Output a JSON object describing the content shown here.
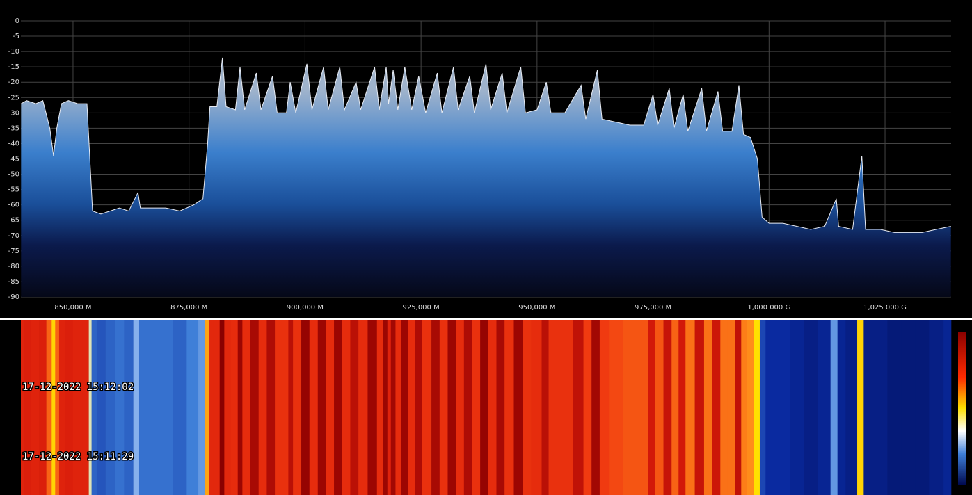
{
  "chart_data": {
    "type": "area",
    "x": [
      838.8,
      840,
      842,
      843.5,
      845,
      845.8,
      846.5,
      847.5,
      849,
      851,
      853,
      853.8,
      854.2,
      856,
      858,
      860,
      862,
      864,
      864.5,
      867,
      870,
      873,
      876,
      878,
      879,
      879.5,
      881,
      882.2,
      883,
      885,
      886,
      887,
      889.5,
      890.5,
      893,
      894,
      896,
      896.8,
      898,
      900.4,
      901.5,
      904,
      905,
      907.5,
      908.5,
      911,
      912,
      915,
      916,
      917.5,
      918,
      919,
      920,
      921.5,
      923,
      924.5,
      926,
      928.5,
      929.5,
      932,
      933,
      935.5,
      936.5,
      939,
      940,
      942.5,
      943.5,
      946.5,
      947.5,
      950,
      952,
      953,
      956,
      959.5,
      960.5,
      963,
      964,
      967,
      970,
      973,
      975,
      976,
      978.5,
      979.5,
      981.5,
      982.5,
      985.5,
      986.5,
      989,
      990,
      992,
      993.5,
      994.5,
      996,
      997.5,
      998.5,
      1000,
      1003,
      1006,
      1009,
      1012,
      1014.5,
      1015,
      1018,
      1020,
      1020.8,
      1024,
      1027,
      1030,
      1033,
      1036,
      1039.2
    ],
    "values": [
      -27,
      -26,
      -27,
      -26,
      -35,
      -44,
      -35,
      -27,
      -26,
      -27,
      -27,
      -50,
      -62,
      -63,
      -62,
      -61,
      -62,
      -56,
      -61,
      -61,
      -61,
      -62,
      -60,
      -58,
      -40,
      -28,
      -28,
      -12,
      -28,
      -29,
      -15,
      -29,
      -17,
      -29,
      -18,
      -30,
      -30,
      -20,
      -30,
      -14,
      -29,
      -15,
      -29,
      -15,
      -29,
      -20,
      -29,
      -15,
      -29,
      -15,
      -27,
      -16,
      -29,
      -15,
      -29,
      -18,
      -30,
      -17,
      -30,
      -15,
      -29,
      -18,
      -30,
      -14,
      -29,
      -17,
      -30,
      -15,
      -30,
      -29,
      -20,
      -30,
      -30,
      -21,
      -32,
      -16,
      -32,
      -33,
      -34,
      -34,
      -24,
      -34,
      -22,
      -35,
      -24,
      -36,
      -22,
      -36,
      -23,
      -36,
      -36,
      -21,
      -37,
      -38,
      -45,
      -64,
      -66,
      -66,
      -67,
      -68,
      -67,
      -58,
      -67,
      -68,
      -44,
      -68,
      -68,
      -69,
      -69,
      -69,
      -68,
      -67
    ],
    "xlim": [
      838.76,
      1039.24
    ],
    "xticks": [
      {
        "value": 850,
        "label": "850,000 M"
      },
      {
        "value": 875,
        "label": "875,000 M"
      },
      {
        "value": 900,
        "label": "900,000 M"
      },
      {
        "value": 925,
        "label": "925,000 M"
      },
      {
        "value": 950,
        "label": "950,000 M"
      },
      {
        "value": 975,
        "label": "975,000 M"
      },
      {
        "value": 1000,
        "label": "1,000 000 G"
      },
      {
        "value": 1025,
        "label": "1,025 000 G"
      }
    ],
    "ylim": [
      -90,
      0
    ],
    "yticks": [
      0,
      -5,
      -10,
      -15,
      -20,
      -25,
      -30,
      -35,
      -40,
      -45,
      -50,
      -55,
      -60,
      -65,
      -70,
      -75,
      -80,
      -85,
      -90
    ],
    "grid": true,
    "color": "#e8ecf4"
  },
  "waterfall": {
    "timestamps": [
      "17-12-2022 15:12:02",
      "17-12-2022 15:11:29"
    ]
  }
}
